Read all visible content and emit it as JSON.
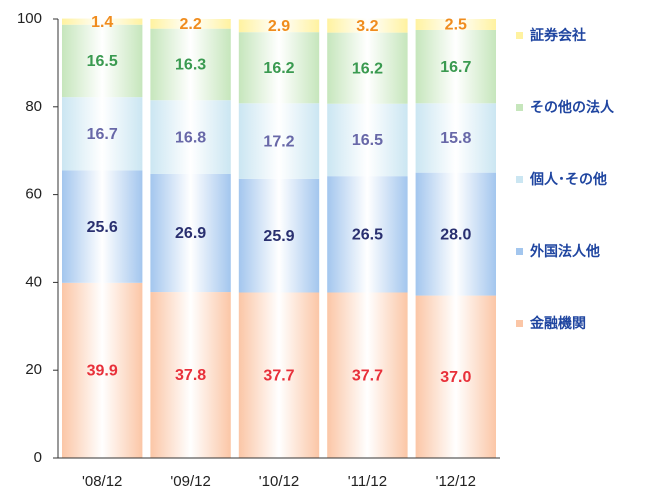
{
  "chart_data": {
    "type": "stacked_bar",
    "categories": [
      "'08/12",
      "'09/12",
      "'10/12",
      "'11/12",
      "'12/12"
    ],
    "series": [
      {
        "name": "金融機関",
        "color": "#fbc6a6",
        "label_color": "#e8303a",
        "values": [
          39.9,
          37.8,
          37.7,
          37.7,
          37.0
        ],
        "value_labels": [
          "39.9",
          "37.8",
          "37.7",
          "37.7",
          "37.0"
        ]
      },
      {
        "name": "外国法人他",
        "color": "#a3c6ee",
        "label_color": "#2a3070",
        "values": [
          25.6,
          26.9,
          25.9,
          26.5,
          28.0
        ],
        "value_labels": [
          "25.6",
          "26.9",
          "25.9",
          "26.5",
          "28.0"
        ]
      },
      {
        "name": "個人･その他",
        "color": "#cbe6f2",
        "label_color": "#6868a8",
        "values": [
          16.7,
          16.8,
          17.2,
          16.5,
          15.8
        ],
        "value_labels": [
          "16.7",
          "16.8",
          "17.2",
          "16.5",
          "15.8"
        ]
      },
      {
        "name": "その他の法人",
        "color": "#c6e6bc",
        "label_color": "#3a9a50",
        "values": [
          16.5,
          16.3,
          16.2,
          16.2,
          16.7
        ],
        "value_labels": [
          "16.5",
          "16.3",
          "16.2",
          "16.2",
          "16.7"
        ]
      },
      {
        "name": "証券会社",
        "color": "#fff2a0",
        "label_color": "#f08c1e",
        "values": [
          1.4,
          2.2,
          2.9,
          3.2,
          2.5
        ],
        "value_labels": [
          "1.4",
          "2.2",
          "2.9",
          "3.2",
          "2.5"
        ]
      }
    ],
    "ylim": [
      0,
      100
    ],
    "yticks": [
      0,
      20,
      40,
      60,
      80,
      100
    ],
    "legend": "right"
  }
}
